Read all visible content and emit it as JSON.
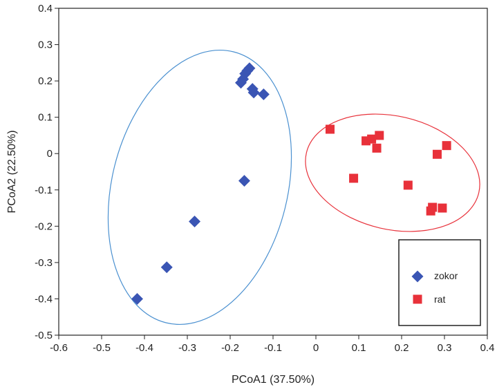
{
  "chart_data": {
    "type": "scatter",
    "title": "",
    "xlabel": "PCoA1 (37.50%)",
    "ylabel": "PCoA2 (22.50%)",
    "xlim": [
      -0.6,
      0.4
    ],
    "ylim": [
      -0.5,
      0.4
    ],
    "xticks": [
      -0.6,
      -0.5,
      -0.4,
      -0.3,
      -0.2,
      -0.1,
      0,
      0.1,
      0.2,
      0.3,
      0.4
    ],
    "yticks": [
      -0.5,
      -0.4,
      -0.3,
      -0.2,
      -0.1,
      0,
      0.1,
      0.2,
      0.3,
      0.4
    ],
    "xtick_labels": [
      "-0.6",
      "-0.5",
      "-0.4",
      "-0.3",
      "-0.2",
      "-0.1",
      "0",
      "0.1",
      "0.2",
      "0.3",
      "0.4"
    ],
    "ytick_labels": [
      "-0.5",
      "-0.4",
      "-0.3",
      "-0.2",
      "-0.1",
      "0",
      "0.1",
      "0.2",
      "0.3",
      "0.4"
    ],
    "grid": false,
    "legend_position": "bottom-right",
    "series": [
      {
        "name": "zokor",
        "marker": "diamond",
        "color": "#3a55b4",
        "ellipse_color": "#4a90d0",
        "x": [
          -0.155,
          -0.16,
          -0.165,
          -0.17,
          -0.175,
          -0.148,
          -0.145,
          -0.122,
          -0.167,
          -0.283,
          -0.348,
          -0.417
        ],
        "y": [
          0.235,
          0.228,
          0.22,
          0.205,
          0.195,
          0.178,
          0.168,
          0.163,
          -0.075,
          -0.187,
          -0.313,
          -0.4
        ]
      },
      {
        "name": "rat",
        "marker": "square",
        "color": "#e8313a",
        "ellipse_color": "#e8313a",
        "x": [
          0.033,
          0.117,
          0.13,
          0.148,
          0.142,
          0.088,
          0.215,
          0.305,
          0.283,
          0.272,
          0.268,
          0.295
        ],
        "y": [
          0.067,
          0.035,
          0.04,
          0.05,
          0.015,
          -0.068,
          -0.087,
          0.022,
          -0.002,
          -0.148,
          -0.158,
          -0.15
        ]
      }
    ]
  }
}
